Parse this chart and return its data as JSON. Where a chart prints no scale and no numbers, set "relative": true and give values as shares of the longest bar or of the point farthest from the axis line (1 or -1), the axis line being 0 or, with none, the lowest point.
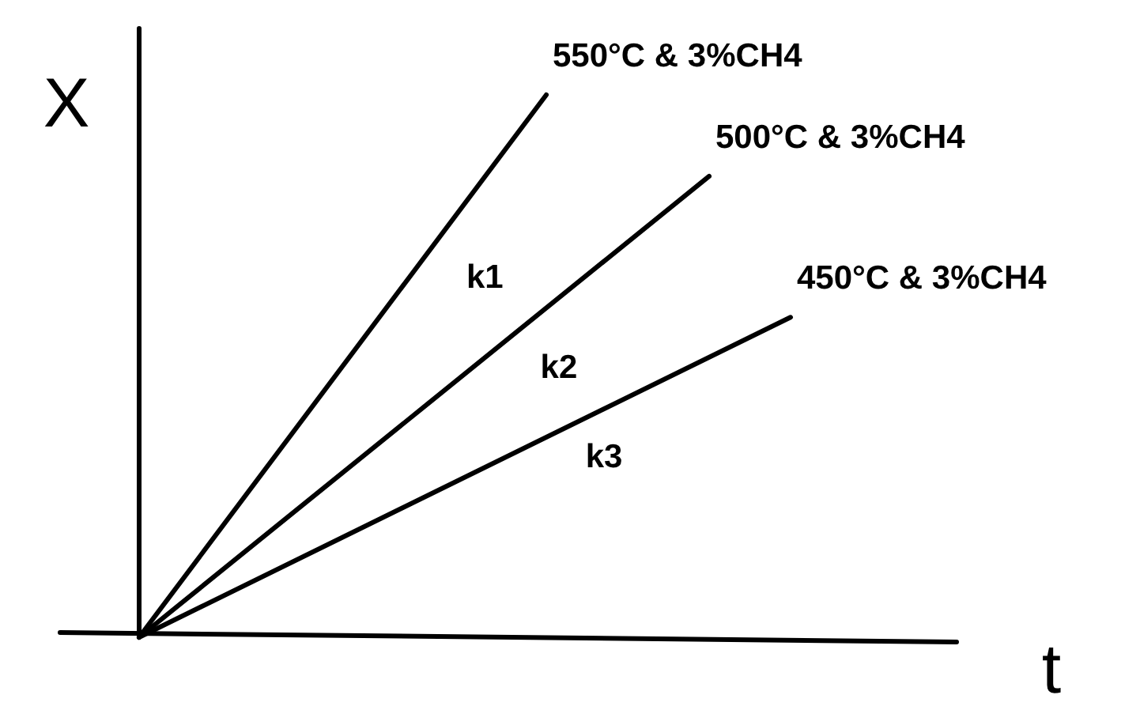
{
  "chart_data": {
    "type": "line",
    "relative": true,
    "xlabel": "t",
    "ylabel": "X",
    "line_style": "solid",
    "categories": [
      null,
      null,
      null,
      null,
      null,
      null,
      null,
      null,
      null,
      null,
      null
    ],
    "series": [
      {
        "name": "550°C & 3%CH4",
        "color": "#000000",
        "values": [
          0,
          null,
          null,
          null,
          null,
          1,
          null,
          null,
          null,
          null,
          null
        ]
      },
      {
        "name": "500°C & 3%CH4",
        "color": "#000000",
        "values": [
          0,
          null,
          null,
          null,
          null,
          null,
          null,
          0.85,
          null,
          null,
          null
        ]
      },
      {
        "name": "450°C & 3%CH4",
        "color": "#000000",
        "values": [
          0,
          null,
          null,
          null,
          null,
          null,
          null,
          null,
          0.59,
          null,
          null
        ]
      }
    ],
    "annotations": [
      "k1",
      "k2",
      "k3"
    ]
  }
}
